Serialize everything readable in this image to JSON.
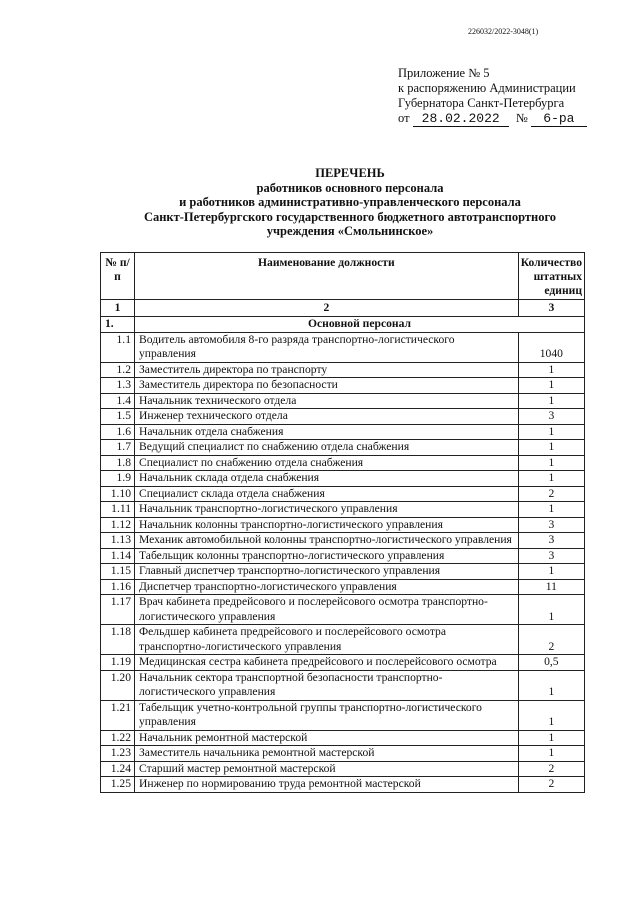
{
  "doc_id": "226032/2022-3048(1)",
  "appendix": {
    "line1": "Приложение № 5",
    "line2": "к распоряжению Администрации",
    "line3": "Губернатора Санкт-Петербурга",
    "date_prefix": "от",
    "date": "28.02.2022",
    "num_prefix": "№",
    "num": "6-ра"
  },
  "title": {
    "line1": "ПЕРЕЧЕНЬ",
    "line2": "работников основного персонала",
    "line3": "и работников административно-управленческого персонала",
    "line4": "Санкт-Петербургского государственного бюджетного автотранспортного",
    "line5": "учреждения «Смольнинское»"
  },
  "table": {
    "headers": [
      "№ п/п",
      "Наименование должности",
      "Количество штатных единиц"
    ],
    "col_numbers": [
      "1",
      "2",
      "3"
    ],
    "section": {
      "num": "1.",
      "name": "Основной персонал"
    },
    "rows": [
      {
        "n": "1.1",
        "name": "Водитель автомобиля 8-го разряда транспортно-логистического управления",
        "q": "1040"
      },
      {
        "n": "1.2",
        "name": "Заместитель директора по транспорту",
        "q": "1"
      },
      {
        "n": "1.3",
        "name": "Заместитель директора по безопасности",
        "q": "1"
      },
      {
        "n": "1.4",
        "name": "Начальник технического отдела",
        "q": "1"
      },
      {
        "n": "1.5",
        "name": "Инженер технического отдела",
        "q": "3"
      },
      {
        "n": "1.6",
        "name": "Начальник отдела снабжения",
        "q": "1"
      },
      {
        "n": "1.7",
        "name": "Ведущий специалист по снабжению отдела снабжения",
        "q": "1"
      },
      {
        "n": "1.8",
        "name": "Специалист по снабжению отдела снабжения",
        "q": "1"
      },
      {
        "n": "1.9",
        "name": "Начальник склада отдела снабжения",
        "q": "1"
      },
      {
        "n": "1.10",
        "name": "Специалист склада отдела снабжения",
        "q": "2"
      },
      {
        "n": "1.11",
        "name": "Начальник транспортно-логистического управления",
        "q": "1"
      },
      {
        "n": "1.12",
        "name": "Начальник колонны транспортно-логистического управления",
        "q": "3"
      },
      {
        "n": "1.13",
        "name": "Механик автомобильной колонны транспортно-логистического управления",
        "q": "3"
      },
      {
        "n": "1.14",
        "name": "Табельщик колонны транспортно-логистического управления",
        "q": "3"
      },
      {
        "n": "1.15",
        "name": "Главный диспетчер транспортно-логистического управления",
        "q": "1"
      },
      {
        "n": "1.16",
        "name": "Диспетчер транспортно-логистического управления",
        "q": "11"
      },
      {
        "n": "1.17",
        "name": "Врач кабинета предрейсового и послерейсового осмотра транспортно-логистического управления",
        "q": "1"
      },
      {
        "n": "1.18",
        "name": "Фельдшер кабинета предрейсового и послерейсового осмотра транспортно-логистического управления",
        "q": "2"
      },
      {
        "n": "1.19",
        "name": "Медицинская сестра кабинета предрейсового и послерейсового осмотра",
        "q": "0,5"
      },
      {
        "n": "1.20",
        "name": "Начальник сектора транспортной безопасности транспортно-логистического управления",
        "q": "1"
      },
      {
        "n": "1.21",
        "name": "Табельщик учетно-контрольной группы транспортно-логистического управления",
        "q": "1"
      },
      {
        "n": "1.22",
        "name": "Начальник ремонтной мастерской",
        "q": "1"
      },
      {
        "n": "1.23",
        "name": "Заместитель начальника ремонтной мастерской",
        "q": "1"
      },
      {
        "n": "1.24",
        "name": "Старший мастер ремонтной мастерской",
        "q": "2"
      },
      {
        "n": "1.25",
        "name": "Инженер по нормированию труда ремонтной мастерской",
        "q": "2"
      }
    ]
  }
}
